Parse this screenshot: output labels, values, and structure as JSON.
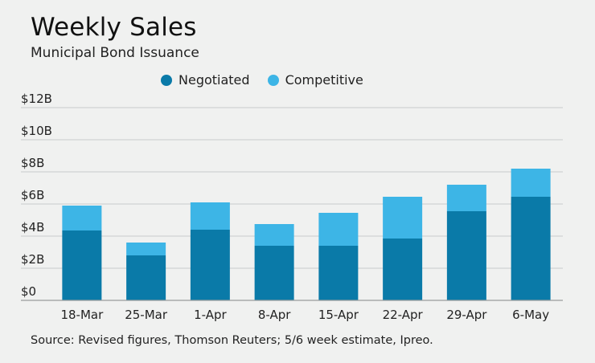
{
  "colors": {
    "negotiated": "#0a7aa8",
    "competitive": "#3db5e6",
    "grid": "#c9cccc",
    "axis": "#9a9d9d",
    "background": "#f0f1f0"
  },
  "chart_data": {
    "type": "bar",
    "stacked": true,
    "title": "Weekly Sales",
    "subtitle": "Municipal Bond Issuance",
    "source": "Source: Revised figures, Thomson Reuters; 5/6 week estimate, Ipreo.",
    "categories": [
      "18-Mar",
      "25-Mar",
      "1-Apr",
      "8-Apr",
      "15-Apr",
      "22-Apr",
      "29-Apr",
      "6-May"
    ],
    "series": [
      {
        "name": "Negotiated",
        "values": [
          4.35,
          2.8,
          4.4,
          3.4,
          3.4,
          3.85,
          5.55,
          6.45
        ]
      },
      {
        "name": "Competitive",
        "values": [
          1.55,
          0.8,
          1.7,
          1.35,
          2.05,
          2.6,
          1.65,
          1.75
        ]
      }
    ],
    "ylim": [
      0,
      12
    ],
    "yticks": [
      0,
      2,
      4,
      6,
      8,
      10,
      12
    ],
    "ytick_labels": [
      "$0",
      "$2B",
      "$4B",
      "$6B",
      "$8B",
      "$10B",
      "$12B"
    ],
    "grid": true,
    "legend_position": "top-center"
  }
}
